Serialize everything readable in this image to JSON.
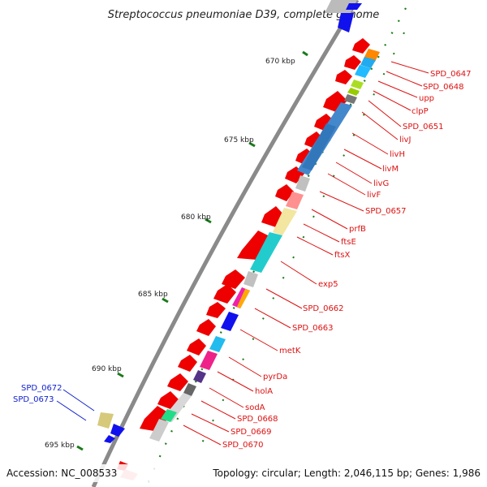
{
  "title": "Streptococcus pneumoniae D39, complete genome",
  "footer": {
    "accession": "Accession: NC_008533",
    "topology": "Topology: circular; Length: 2,046,115 bp; Genes: 1,986"
  },
  "colors": {
    "backbone": "#8a8a8a",
    "forward_strand": "#ee0000",
    "tick": "#1a7a1a",
    "label_right": "#dd1111",
    "label_left": "#1122cc"
  },
  "kbp_ticks": [
    "670 kbp",
    "675 kbp",
    "680 kbp",
    "685 kbp",
    "690 kbp",
    "695 kbp"
  ],
  "right_labels": [
    "SPD_0647",
    "SPD_0648",
    "upp",
    "clpP",
    "SPD_0651",
    "livJ",
    "livH",
    "livM",
    "livG",
    "livF",
    "SPD_0657",
    "prfB",
    "ftsE",
    "ftsX",
    "exp5",
    "SPD_0662",
    "SPD_0663",
    "metK",
    "pyrDa",
    "holA",
    "sodA",
    "SPD_0668",
    "SPD_0669",
    "SPD_0670"
  ],
  "left_labels": [
    "SPD_0672",
    "SPD_0673"
  ]
}
